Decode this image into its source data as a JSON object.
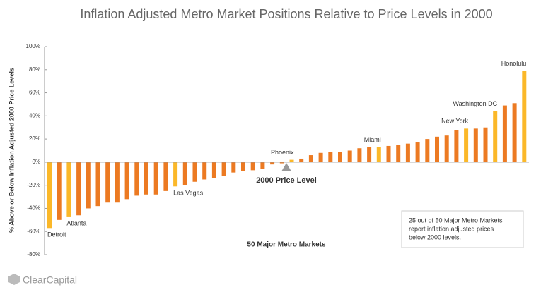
{
  "chart_data": {
    "type": "bar",
    "title": "Inflation Adjusted Metro Market Positions Relative to Price Levels in 2000",
    "y_label": "% Above or Below Inflation Adjusted 2000 Price Levels",
    "x_label": "50 Major Metro Markets",
    "reference_label": "2000 Price Level",
    "note": [
      "25 out of 50 Major Metro Markets",
      "report inflation adjusted prices",
      "below 2000 levels."
    ],
    "brand": "ClearCapital",
    "categories": [
      "Detroit",
      null,
      "Atlanta",
      null,
      null,
      null,
      null,
      null,
      null,
      null,
      null,
      null,
      null,
      "Las Vegas",
      null,
      null,
      null,
      null,
      null,
      null,
      null,
      null,
      null,
      null,
      null,
      "Phoenix",
      null,
      null,
      null,
      null,
      null,
      null,
      null,
      null,
      "Miami",
      null,
      null,
      null,
      null,
      null,
      null,
      null,
      null,
      "New York",
      null,
      null,
      "Washington DC",
      null,
      null,
      "Honolulu"
    ],
    "values": [
      -57,
      -50,
      -47,
      -46,
      -40,
      -38,
      -35,
      -35,
      -32,
      -29,
      -28,
      -28,
      -25,
      -21,
      -20,
      -17,
      -15,
      -14,
      -12,
      -9,
      -8,
      -7,
      -6,
      -2,
      -1,
      2,
      3,
      6,
      8,
      9,
      9,
      10,
      12,
      13,
      13,
      14,
      15,
      16,
      17,
      20,
      22,
      23,
      28,
      29,
      29,
      30,
      44,
      49,
      51,
      79
    ],
    "colors": [
      "#fbb829",
      "#ec7a22",
      "#fbb829",
      "#ec7a22",
      "#ec7a22",
      "#ec7a22",
      "#ec7a22",
      "#ec7a22",
      "#ec7a22",
      "#ec7a22",
      "#ec7a22",
      "#ec7a22",
      "#ec7a22",
      "#fbb829",
      "#ec7a22",
      "#ec7a22",
      "#ec7a22",
      "#ec7a22",
      "#ec7a22",
      "#ec7a22",
      "#ec7a22",
      "#ec7a22",
      "#ec7a22",
      "#ec7a22",
      "#ec7a22",
      "#fbb829",
      "#ec7a22",
      "#ec7a22",
      "#ec7a22",
      "#ec7a22",
      "#ec7a22",
      "#ec7a22",
      "#ec7a22",
      "#ec7a22",
      "#fbb829",
      "#ec7a22",
      "#ec7a22",
      "#ec7a22",
      "#ec7a22",
      "#ec7a22",
      "#ec7a22",
      "#ec7a22",
      "#ec7a22",
      "#fbb829",
      "#ec7a22",
      "#ec7a22",
      "#fbb829",
      "#ec7a22",
      "#ec7a22",
      "#fbb829"
    ],
    "ylim": [
      -80,
      100
    ],
    "yticks": [
      {
        "value": -80,
        "label": "-80%"
      },
      {
        "value": -60,
        "label": "-60%"
      },
      {
        "value": -40,
        "label": "-40%"
      },
      {
        "value": -20,
        "label": "-20%"
      },
      {
        "value": 0,
        "label": "0%"
      },
      {
        "value": 20,
        "label": "20%"
      },
      {
        "value": 40,
        "label": "40%"
      },
      {
        "value": 60,
        "label": "60%"
      },
      {
        "value": 80,
        "label": "80%"
      },
      {
        "value": 100,
        "label": "100%"
      }
    ]
  }
}
